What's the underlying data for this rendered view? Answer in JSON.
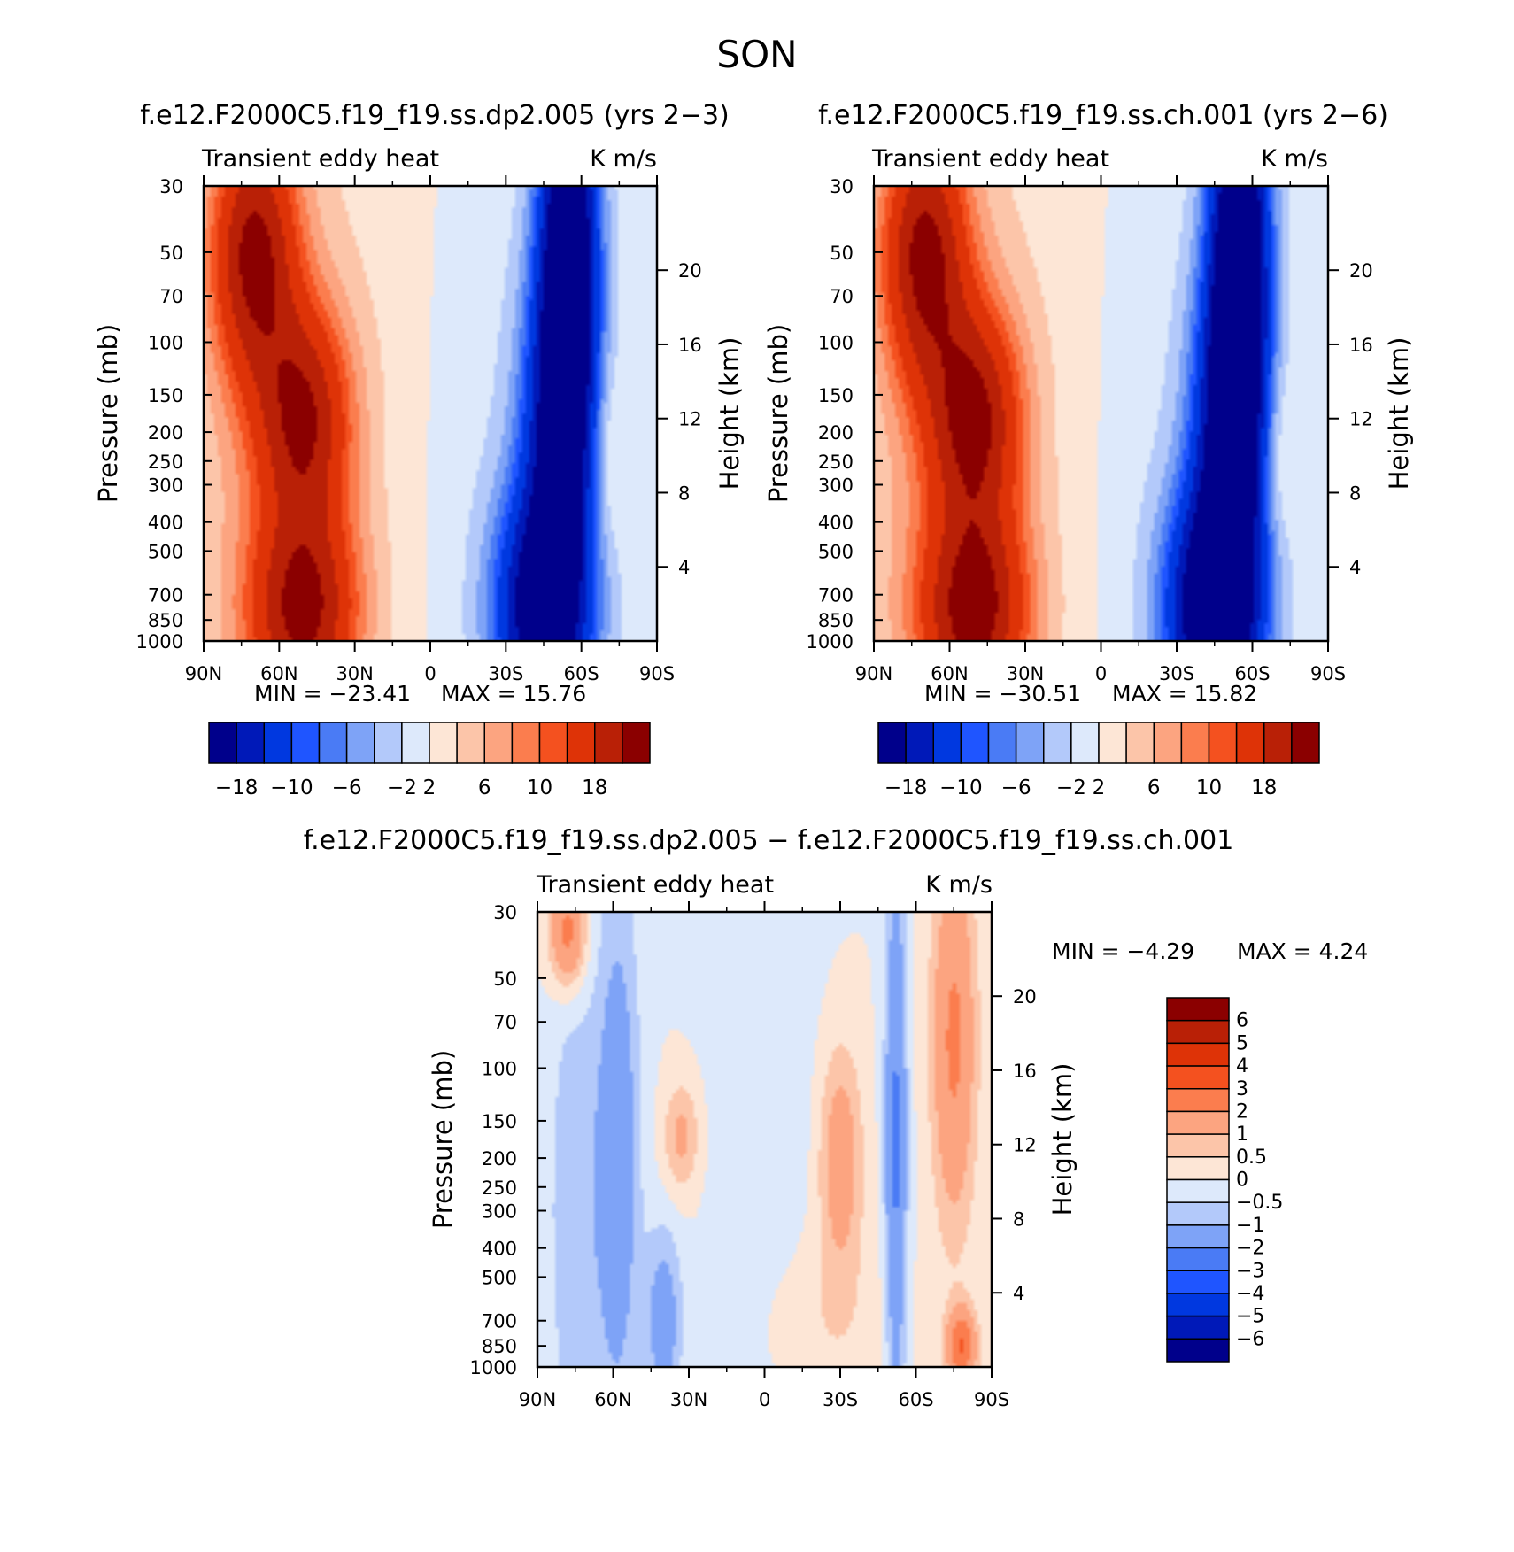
{
  "chart_data": {
    "type": "heatmap",
    "title": "SON",
    "pressure_ticks": [
      "30",
      "50",
      "70",
      "100",
      "150",
      "200",
      "250",
      "300",
      "400",
      "500",
      "700",
      "850",
      "1000"
    ],
    "pressure_values": [
      30,
      50,
      70,
      100,
      150,
      200,
      250,
      300,
      400,
      500,
      700,
      850,
      1000
    ],
    "height_ticks": [
      "20",
      "16",
      "12",
      "8",
      "4"
    ],
    "height_values_km": [
      20,
      16,
      12,
      8,
      4
    ],
    "lat_ticks": [
      "90N",
      "60N",
      "30N",
      "0",
      "30S",
      "60S",
      "90S"
    ],
    "lat_values": [
      90,
      60,
      30,
      0,
      -30,
      -60,
      -90
    ],
    "panels": [
      {
        "id": "case1",
        "title": "f.e12.F2000C5.f19_f19.ss.dp2.005 (yrs 2−3)",
        "left_label": "Transient eddy heat",
        "right_label": "K m/s",
        "ylabel": "Pressure (mb)",
        "y2label": "Height (km)",
        "xlabel": "",
        "min_label": "MIN = −23.41",
        "max_label": "MAX = 15.76",
        "min": -23.41,
        "max": 15.76,
        "ylim": [
          1000,
          30
        ],
        "xlim": [
          90,
          -90
        ],
        "colorbar_levels": [
          -18,
          -14,
          -10,
          -8,
          -6,
          -4,
          -2,
          0,
          2,
          4,
          6,
          8,
          10,
          14,
          18
        ],
        "colorbar_tick_labels": [
          "−18",
          "−10",
          "−6",
          "−2",
          "2",
          "6",
          "10",
          "18"
        ],
        "features": [
          {
            "lat": 70,
            "p": 50,
            "sx": 12,
            "sy": 0.7,
            "v": 17
          },
          {
            "lat": 50,
            "p": 180,
            "sx": 13,
            "sy": 0.6,
            "v": 15
          },
          {
            "lat": 50,
            "p": 800,
            "sx": 15,
            "sy": 0.55,
            "v": 16
          },
          {
            "lat": 62,
            "p": 400,
            "sx": 25,
            "sy": 2.5,
            "v": 4
          },
          {
            "lat": 15,
            "p": 200,
            "sx": 20,
            "sy": 3,
            "v": 1
          },
          {
            "lat": -55,
            "p": 50,
            "sx": 8,
            "sy": 1.2,
            "v": -26
          },
          {
            "lat": -50,
            "p": 200,
            "sx": 10,
            "sy": 0.9,
            "v": -14
          },
          {
            "lat": -45,
            "p": 800,
            "sx": 13,
            "sy": 0.65,
            "v": -22
          },
          {
            "lat": -30,
            "p": 400,
            "sx": 35,
            "sy": 2.5,
            "v": -1.5
          },
          {
            "lat": -70,
            "p": 250,
            "sx": 5,
            "sy": 0.5,
            "v": 3
          }
        ]
      },
      {
        "id": "case2",
        "title": "f.e12.F2000C5.f19_f19.ss.ch.001 (yrs 2−6)",
        "left_label": "Transient eddy heat",
        "right_label": "K m/s",
        "ylabel": "Pressure (mb)",
        "y2label": "Height (km)",
        "xlabel": "",
        "min_label": "MIN = −30.51",
        "max_label": "MAX = 15.82",
        "min": -30.51,
        "max": 15.82,
        "ylim": [
          1000,
          30
        ],
        "xlim": [
          90,
          -90
        ],
        "colorbar_levels": [
          -18,
          -14,
          -10,
          -8,
          -6,
          -4,
          -2,
          0,
          2,
          4,
          6,
          8,
          10,
          14,
          18
        ],
        "colorbar_tick_labels": [
          "−18",
          "−10",
          "−6",
          "−2",
          "2",
          "6",
          "10",
          "18"
        ],
        "features": [
          {
            "lat": 70,
            "p": 50,
            "sx": 12,
            "sy": 0.7,
            "v": 17
          },
          {
            "lat": 50,
            "p": 180,
            "sx": 13,
            "sy": 0.6,
            "v": 16
          },
          {
            "lat": 50,
            "p": 800,
            "sx": 15,
            "sy": 0.55,
            "v": 17
          },
          {
            "lat": 62,
            "p": 400,
            "sx": 25,
            "sy": 2.5,
            "v": 4
          },
          {
            "lat": 15,
            "p": 200,
            "sx": 20,
            "sy": 3,
            "v": 1
          },
          {
            "lat": -55,
            "p": 50,
            "sx": 8,
            "sy": 1.2,
            "v": -27
          },
          {
            "lat": -50,
            "p": 200,
            "sx": 10,
            "sy": 0.9,
            "v": -16
          },
          {
            "lat": -45,
            "p": 800,
            "sx": 13,
            "sy": 0.65,
            "v": -25
          },
          {
            "lat": -30,
            "p": 400,
            "sx": 35,
            "sy": 2.5,
            "v": -1.5
          },
          {
            "lat": -70,
            "p": 250,
            "sx": 5,
            "sy": 0.5,
            "v": 3
          }
        ]
      },
      {
        "id": "diff",
        "title": "f.e12.F2000C5.f19_f19.ss.dp2.005 − f.e12.F2000C5.f19_f19.ss.ch.001",
        "left_label": "Transient eddy heat",
        "right_label": "K m/s",
        "ylabel": "Pressure (mb)",
        "y2label": "Height (km)",
        "xlabel": "",
        "min_label": "MIN = −4.29",
        "max_label": "MAX = 4.24",
        "min": -4.29,
        "max": 4.24,
        "ylim": [
          1000,
          30
        ],
        "xlim": [
          90,
          -90
        ],
        "colorbar_levels": [
          -6,
          -5,
          -4,
          -3,
          -2,
          -1,
          -0.5,
          0,
          0.5,
          1,
          2,
          3,
          4,
          5,
          6
        ],
        "colorbar_tick_labels": [
          "6",
          "5",
          "4",
          "3",
          "2",
          "1",
          "0.5",
          "0",
          "−0.5",
          "−1",
          "−2",
          "−3",
          "−4",
          "−5",
          "−6"
        ],
        "features": [
          {
            "lat": 78,
            "p": 35,
            "sx": 5,
            "sy": 0.3,
            "v": 2.5
          },
          {
            "lat": 58,
            "p": 200,
            "sx": 6,
            "sy": 1.5,
            "v": -1.6
          },
          {
            "lat": 75,
            "p": 300,
            "sx": 8,
            "sy": 1.5,
            "v": -0.9
          },
          {
            "lat": 40,
            "p": 700,
            "sx": 5,
            "sy": 0.5,
            "v": -1.5
          },
          {
            "lat": 33,
            "p": 170,
            "sx": 5,
            "sy": 0.3,
            "v": 1.2
          },
          {
            "lat": -30,
            "p": 200,
            "sx": 6,
            "sy": 0.6,
            "v": 1.6
          },
          {
            "lat": -52,
            "p": 180,
            "sx": 3,
            "sy": 1.5,
            "v": -2.2
          },
          {
            "lat": -75,
            "p": 80,
            "sx": 6,
            "sy": 1.0,
            "v": 2.2
          },
          {
            "lat": -78,
            "p": 850,
            "sx": 4,
            "sy": 0.2,
            "v": 3.0
          },
          {
            "lat": 0,
            "p": 200,
            "sx": 15,
            "sy": 2,
            "v": -0.4
          },
          {
            "lat": -20,
            "p": 700,
            "sx": 20,
            "sy": 0.5,
            "v": 0.5
          }
        ]
      }
    ],
    "palette": [
      "#00008b",
      "#0019b8",
      "#0038e0",
      "#1f55ff",
      "#4a7bf5",
      "#7ea3f7",
      "#b3c9fa",
      "#dde9fb",
      "#fde6d6",
      "#fcc5a9",
      "#fca480",
      "#fb7d4e",
      "#f4511f",
      "#de3307",
      "#b92006",
      "#8b0000"
    ]
  }
}
